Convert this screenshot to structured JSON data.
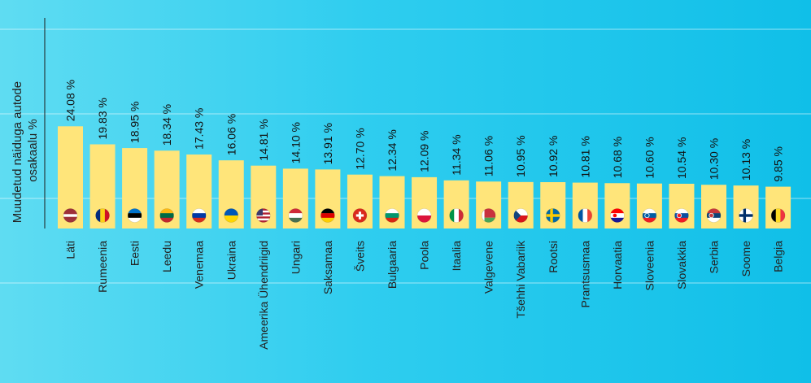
{
  "chart_data": {
    "type": "bar",
    "ylabel": "Muudetud näiduga autode osakaalu %",
    "ylabel_lines": [
      "Muudetud näiduga autode",
      "osakaalu %"
    ],
    "value_suffix": " %",
    "ylim": [
      0,
      40
    ],
    "grid": true,
    "colors": {
      "bar": "#ffe57a",
      "grid": "rgba(255,255,255,0.55)",
      "axis": "#1a1a1a"
    },
    "categories": [
      "Läti",
      "Rumeenia",
      "Eesti",
      "Leedu",
      "Venemaa",
      "Ukraina",
      "Ameerika Ühendriigid",
      "Ungari",
      "Saksamaa",
      "Šveits",
      "Bulgaaria",
      "Poola",
      "Itaalia",
      "Valgevene",
      "Tšehhi Vabariik",
      "Rootsi",
      "Prantsusmaa",
      "Horvaatia",
      "Sloveenia",
      "Slovakkia",
      "Serbia",
      "Soome",
      "Belgia"
    ],
    "values": [
      24.08,
      19.83,
      18.95,
      18.34,
      17.43,
      16.06,
      14.81,
      14.1,
      13.91,
      12.7,
      12.34,
      12.09,
      11.34,
      11.06,
      10.95,
      10.92,
      10.81,
      10.68,
      10.6,
      10.54,
      10.3,
      10.13,
      9.85
    ],
    "value_labels": [
      "24.08 %",
      "19.83 %",
      "18.95 %",
      "18.34 %",
      "17.43 %",
      "16.06 %",
      "14.81 %",
      "14.10 %",
      "13.91 %",
      "12.70 %",
      "12.34 %",
      "12.09 %",
      "11.34 %",
      "11.06 %",
      "10.95 %",
      "10.92 %",
      "10.81 %",
      "10.68 %",
      "10.60 %",
      "10.54 %",
      "10.30 %",
      "10.13 %",
      "9.85 %"
    ],
    "flag_icons": [
      "latvia-flag-icon",
      "romania-flag-icon",
      "estonia-flag-icon",
      "lithuania-flag-icon",
      "russia-flag-icon",
      "ukraine-flag-icon",
      "usa-flag-icon",
      "hungary-flag-icon",
      "germany-flag-icon",
      "switzerland-flag-icon",
      "bulgaria-flag-icon",
      "poland-flag-icon",
      "italy-flag-icon",
      "belarus-flag-icon",
      "czechia-flag-icon",
      "sweden-flag-icon",
      "france-flag-icon",
      "croatia-flag-icon",
      "slovenia-flag-icon",
      "slovakia-flag-icon",
      "serbia-flag-icon",
      "finland-flag-icon",
      "belgium-flag-icon"
    ]
  }
}
